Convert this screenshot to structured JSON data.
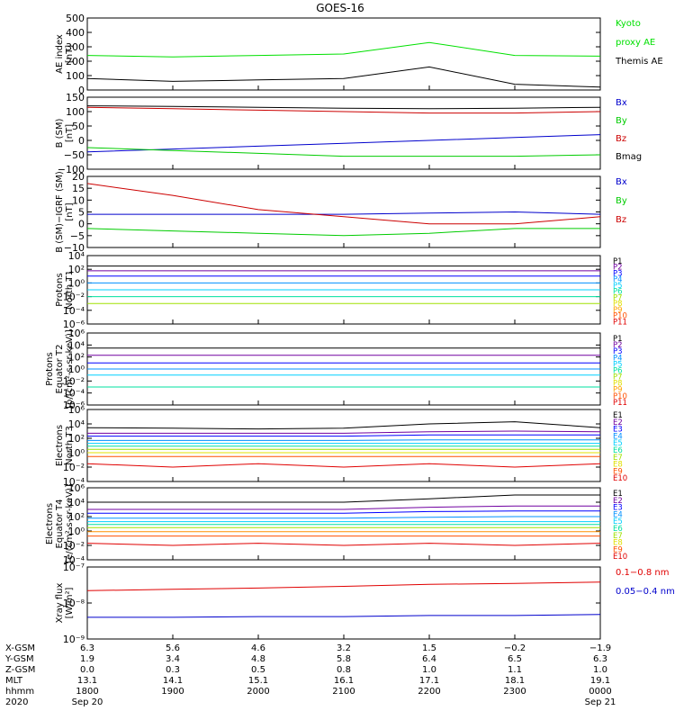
{
  "title": "GOES-16",
  "panels": [
    {
      "id": "ae",
      "ylabel_lines": [
        "AE index",
        "[nT]"
      ],
      "ticks": [
        "500",
        "400",
        "300",
        "200",
        "100",
        "0"
      ],
      "legend": [
        {
          "text": "Kyoto",
          "color": "#00e000"
        },
        {
          "text": "proxy AE",
          "color": "#00e000"
        },
        {
          "text": "Themis AE",
          "color": "#000000"
        }
      ]
    },
    {
      "id": "bsm",
      "ylabel_lines": [
        "B (SM)",
        "[nT]"
      ],
      "ticks": [
        "150",
        "100",
        "50",
        "0",
        "−50",
        "−100"
      ],
      "legend": [
        {
          "text": "Bx",
          "color": "#0000cc"
        },
        {
          "text": "By",
          "color": "#00cc00"
        },
        {
          "text": "Bz",
          "color": "#cc0000"
        },
        {
          "text": "Bmag",
          "color": "#000000"
        }
      ]
    },
    {
      "id": "bigrf",
      "ylabel_lines": [
        "B (SM)−IGRF (SM)",
        "[nT]"
      ],
      "ticks": [
        "20",
        "15",
        "10",
        "5",
        "0",
        "−5",
        "−10"
      ],
      "legend": [
        {
          "text": "Bx",
          "color": "#0000cc"
        },
        {
          "text": "By",
          "color": "#00cc00"
        },
        {
          "text": "Bz",
          "color": "#cc0000"
        }
      ]
    },
    {
      "id": "pnorth",
      "ylabel_lines": [
        "Protons",
        "North T1"
      ],
      "ticks": [
        "10⁴",
        "10²",
        "10⁰",
        "10⁻²",
        "10⁻⁴",
        "10⁻⁶"
      ],
      "legend": [
        {
          "text": "P1",
          "color": "#000000"
        },
        {
          "text": "P2",
          "color": "#7000a0"
        },
        {
          "text": "P3",
          "color": "#0000ff"
        },
        {
          "text": "P4",
          "color": "#0090ff"
        },
        {
          "text": "P5",
          "color": "#00d0ff"
        },
        {
          "text": "P6",
          "color": "#00e0a0"
        },
        {
          "text": "P7",
          "color": "#a0e000"
        },
        {
          "text": "P8",
          "color": "#e0e000"
        },
        {
          "text": "P9",
          "color": "#ffa000"
        },
        {
          "text": "P10",
          "color": "#ff5000"
        },
        {
          "text": "P11",
          "color": "#e00000"
        }
      ]
    },
    {
      "id": "peq",
      "ylabel_lines": [
        "Protons",
        "Equator T2",
        "[p/(cm²-s-sr-keV)]"
      ],
      "ticks": [
        "10⁶",
        "10⁴",
        "10²",
        "10⁰",
        "10⁻²",
        "10⁻⁴",
        "10⁻⁶"
      ],
      "legend": [
        {
          "text": "P1",
          "color": "#000000"
        },
        {
          "text": "P2",
          "color": "#7000a0"
        },
        {
          "text": "P3",
          "color": "#0000ff"
        },
        {
          "text": "P4",
          "color": "#0090ff"
        },
        {
          "text": "P5",
          "color": "#00d0ff"
        },
        {
          "text": "P6",
          "color": "#00e0a0"
        },
        {
          "text": "P7",
          "color": "#a0e000"
        },
        {
          "text": "P8",
          "color": "#e0e000"
        },
        {
          "text": "P9",
          "color": "#ffa000"
        },
        {
          "text": "P10",
          "color": "#ff5000"
        },
        {
          "text": "P11",
          "color": "#e00000"
        }
      ]
    },
    {
      "id": "enorth",
      "ylabel_lines": [
        "Electrons",
        "North T3"
      ],
      "ticks": [
        "10⁶",
        "10⁴",
        "10²",
        "10⁰",
        "10⁻²",
        "10⁻⁴"
      ],
      "legend": [
        {
          "text": "E1",
          "color": "#000000"
        },
        {
          "text": "E2",
          "color": "#7000a0"
        },
        {
          "text": "E3",
          "color": "#0000ff"
        },
        {
          "text": "E4",
          "color": "#0090ff"
        },
        {
          "text": "E5",
          "color": "#00d0ff"
        },
        {
          "text": "E6",
          "color": "#00e0a0"
        },
        {
          "text": "E7",
          "color": "#a0e000"
        },
        {
          "text": "E8",
          "color": "#e0e000"
        },
        {
          "text": "E9",
          "color": "#ff5000"
        },
        {
          "text": "E10",
          "color": "#e00000"
        }
      ]
    },
    {
      "id": "eeq",
      "ylabel_lines": [
        "Electrons",
        "Equator T4",
        "[e/(cm²-s-sr-keV)]"
      ],
      "ticks": [
        "10⁶",
        "10⁴",
        "10²",
        "10⁰",
        "10⁻²",
        "10⁻⁴"
      ],
      "legend": [
        {
          "text": "E1",
          "color": "#000000"
        },
        {
          "text": "E2",
          "color": "#7000a0"
        },
        {
          "text": "E3",
          "color": "#0000ff"
        },
        {
          "text": "E4",
          "color": "#0090ff"
        },
        {
          "text": "E5",
          "color": "#00d0ff"
        },
        {
          "text": "E6",
          "color": "#00e0a0"
        },
        {
          "text": "E7",
          "color": "#a0e000"
        },
        {
          "text": "E8",
          "color": "#e0e000"
        },
        {
          "text": "E9",
          "color": "#ff5000"
        },
        {
          "text": "E10",
          "color": "#e00000"
        }
      ]
    },
    {
      "id": "xray",
      "ylabel_lines": [
        "Xray flux",
        "[W/m²]"
      ],
      "ticks": [
        "10⁻⁷",
        "10⁻⁸",
        "10⁻⁹"
      ],
      "legend": [
        {
          "text": "0.1−0.8 nm",
          "color": "#e00000"
        },
        {
          "text": "0.05−0.4 nm",
          "color": "#0000cc"
        }
      ]
    }
  ],
  "footer": {
    "row_labels": [
      "X-GSM",
      "Y-GSM",
      "Z-GSM",
      "MLT",
      "hhmm",
      "2020"
    ],
    "columns": [
      {
        "values": [
          "6.3",
          "1.9",
          "0.0",
          "13.1",
          "1800",
          "Sep 20"
        ]
      },
      {
        "values": [
          "5.6",
          "3.4",
          "0.3",
          "14.1",
          "1900",
          ""
        ]
      },
      {
        "values": [
          "4.6",
          "4.8",
          "0.5",
          "15.1",
          "2000",
          ""
        ]
      },
      {
        "values": [
          "3.2",
          "5.8",
          "0.8",
          "16.1",
          "2100",
          ""
        ]
      },
      {
        "values": [
          "1.5",
          "6.4",
          "1.0",
          "17.1",
          "2200",
          ""
        ]
      },
      {
        "values": [
          "−0.2",
          "6.5",
          "1.1",
          "18.1",
          "2300",
          ""
        ]
      },
      {
        "values": [
          "−1.9",
          "6.3",
          "1.0",
          "19.1",
          "0000",
          "Sep 21"
        ]
      }
    ]
  },
  "chart_data": [
    {
      "type": "line",
      "title": "GOES-16",
      "ylabel": "AE index [nT]",
      "ylim": [
        0,
        500
      ],
      "x": [
        "1800",
        "1900",
        "2000",
        "2100",
        "2200",
        "2300",
        "0000"
      ],
      "series": [
        {
          "name": "Kyoto proxy AE",
          "color": "#00e000",
          "values": [
            240,
            230,
            240,
            250,
            330,
            240,
            235
          ]
        },
        {
          "name": "Themis AE",
          "color": "#000000",
          "values": [
            80,
            60,
            70,
            80,
            160,
            40,
            20
          ]
        }
      ]
    },
    {
      "type": "line",
      "ylabel": "B (SM) [nT]",
      "ylim": [
        -100,
        150
      ],
      "x": [
        "1800",
        "1900",
        "2000",
        "2100",
        "2200",
        "2300",
        "0000"
      ],
      "series": [
        {
          "name": "Bx",
          "color": "#0000cc",
          "values": [
            -40,
            -30,
            -20,
            -10,
            0,
            10,
            20
          ]
        },
        {
          "name": "By",
          "color": "#00cc00",
          "values": [
            -25,
            -35,
            -45,
            -55,
            -55,
            -55,
            -50
          ]
        },
        {
          "name": "Bz",
          "color": "#cc0000",
          "values": [
            115,
            110,
            105,
            100,
            95,
            95,
            100
          ]
        },
        {
          "name": "Bmag",
          "color": "#000000",
          "values": [
            120,
            118,
            115,
            112,
            110,
            112,
            115
          ]
        }
      ]
    },
    {
      "type": "line",
      "ylabel": "B (SM)−IGRF (SM) [nT]",
      "ylim": [
        -10,
        20
      ],
      "x": [
        "1800",
        "1900",
        "2000",
        "2100",
        "2200",
        "2300",
        "0000"
      ],
      "series": [
        {
          "name": "Bx",
          "color": "#0000cc",
          "values": [
            4,
            4,
            4,
            4,
            4.5,
            5,
            4
          ]
        },
        {
          "name": "By",
          "color": "#00cc00",
          "values": [
            -2,
            -3,
            -4,
            -5,
            -4,
            -2,
            -2
          ]
        },
        {
          "name": "Bz",
          "color": "#cc0000",
          "values": [
            17,
            12,
            6,
            3,
            0,
            0,
            3
          ]
        }
      ]
    },
    {
      "type": "line",
      "ylabel": "Protons North T1",
      "yscale": "log",
      "ylim": [
        1e-06,
        10000.0
      ],
      "x": [
        "1800",
        "1900",
        "2000",
        "2100",
        "2200",
        "2300",
        "0000"
      ],
      "series": [
        {
          "name": "P1",
          "color": "#000000",
          "values": [
            300,
            300,
            300,
            300,
            300,
            300,
            300
          ]
        },
        {
          "name": "P2",
          "color": "#7000a0",
          "values": [
            60,
            60,
            60,
            60,
            60,
            60,
            60
          ]
        },
        {
          "name": "P3",
          "color": "#0000ff",
          "values": [
            10,
            10,
            10,
            10,
            10,
            10,
            10
          ]
        },
        {
          "name": "P4",
          "color": "#0090ff",
          "values": [
            1,
            1,
            1,
            1,
            1,
            1,
            1
          ]
        },
        {
          "name": "P5",
          "color": "#00d0ff",
          "values": [
            0.1,
            0.1,
            0.1,
            0.1,
            0.1,
            0.1,
            0.1
          ]
        },
        {
          "name": "P6",
          "color": "#00e0a0",
          "values": [
            0.01,
            0.01,
            0.01,
            0.01,
            0.01,
            0.01,
            0.01
          ]
        },
        {
          "name": "P7",
          "color": "#a0e000",
          "values": [
            0.001,
            0.001,
            0.001,
            0.001,
            0.001,
            0.001,
            0.001
          ]
        }
      ]
    },
    {
      "type": "line",
      "ylabel": "Protons Equator T2 [p/(cm²-s-sr-keV)]",
      "yscale": "log",
      "ylim": [
        1e-06,
        1000000.0
      ],
      "x": [
        "1800",
        "1900",
        "2000",
        "2100",
        "2200",
        "2300",
        "0000"
      ],
      "series": [
        {
          "name": "P1",
          "color": "#000000",
          "values": [
            3000,
            3000,
            3000,
            3000,
            3000,
            3000,
            3000
          ]
        },
        {
          "name": "P2",
          "color": "#7000a0",
          "values": [
            200,
            200,
            200,
            200,
            200,
            200,
            200
          ]
        },
        {
          "name": "P3",
          "color": "#0000ff",
          "values": [
            10,
            10,
            10,
            10,
            10,
            10,
            10
          ]
        },
        {
          "name": "P4",
          "color": "#0090ff",
          "values": [
            1,
            1,
            1,
            1,
            1,
            1,
            1
          ]
        },
        {
          "name": "P5",
          "color": "#00d0ff",
          "values": [
            0.1,
            0.1,
            0.1,
            0.1,
            0.1,
            0.1,
            0.1
          ]
        },
        {
          "name": "P6",
          "color": "#00e0a0",
          "values": [
            0.001,
            0.001,
            0.001,
            0.001,
            0.001,
            0.001,
            0.001
          ]
        }
      ]
    },
    {
      "type": "line",
      "ylabel": "Electrons North T3",
      "yscale": "log",
      "ylim": [
        0.0001,
        1000000.0
      ],
      "x": [
        "1800",
        "1900",
        "2000",
        "2100",
        "2200",
        "2300",
        "0000"
      ],
      "series": [
        {
          "name": "E1",
          "color": "#000000",
          "values": [
            3000,
            2500,
            2000,
            2500,
            10000,
            20000,
            3000
          ]
        },
        {
          "name": "E2",
          "color": "#7000a0",
          "values": [
            500,
            500,
            500,
            500,
            800,
            1000,
            800
          ]
        },
        {
          "name": "E3",
          "color": "#0000ff",
          "values": [
            200,
            200,
            200,
            200,
            300,
            300,
            300
          ]
        },
        {
          "name": "E4",
          "color": "#0090ff",
          "values": [
            50,
            50,
            50,
            50,
            60,
            60,
            60
          ]
        },
        {
          "name": "E5",
          "color": "#00d0ff",
          "values": [
            20,
            20,
            20,
            20,
            20,
            20,
            20
          ]
        },
        {
          "name": "E6",
          "color": "#00e0a0",
          "values": [
            8,
            8,
            8,
            8,
            8,
            8,
            8
          ]
        },
        {
          "name": "E7",
          "color": "#a0e000",
          "values": [
            3,
            3,
            3,
            3,
            3,
            3,
            3
          ]
        },
        {
          "name": "E8",
          "color": "#e0e000",
          "values": [
            1,
            1,
            1,
            1,
            1,
            1,
            1
          ]
        },
        {
          "name": "E9",
          "color": "#ff5000",
          "values": [
            0.3,
            0.3,
            0.3,
            0.3,
            0.3,
            0.3,
            0.3
          ]
        },
        {
          "name": "E10",
          "color": "#e00000",
          "values": [
            0.03,
            0.01,
            0.03,
            0.01,
            0.03,
            0.01,
            0.03
          ]
        }
      ]
    },
    {
      "type": "line",
      "ylabel": "Electrons Equator T4 [e/(cm²-s-sr-keV)]",
      "yscale": "log",
      "ylim": [
        0.0001,
        1000000.0
      ],
      "x": [
        "1800",
        "1900",
        "2000",
        "2100",
        "2200",
        "2300",
        "0000"
      ],
      "series": [
        {
          "name": "E1",
          "color": "#000000",
          "values": [
            10000,
            10000,
            10000,
            10000,
            30000,
            100000,
            100000
          ]
        },
        {
          "name": "E2",
          "color": "#7000a0",
          "values": [
            1000,
            1000,
            1000,
            1000,
            2000,
            3000,
            3000
          ]
        },
        {
          "name": "E3",
          "color": "#0000ff",
          "values": [
            300,
            300,
            300,
            300,
            500,
            600,
            600
          ]
        },
        {
          "name": "E4",
          "color": "#0090ff",
          "values": [
            60,
            60,
            60,
            60,
            80,
            100,
            100
          ]
        },
        {
          "name": "E5",
          "color": "#00d0ff",
          "values": [
            20,
            20,
            20,
            20,
            20,
            20,
            20
          ]
        },
        {
          "name": "E6",
          "color": "#00e0a0",
          "values": [
            8,
            8,
            8,
            8,
            8,
            8,
            8
          ]
        },
        {
          "name": "E7",
          "color": "#a0e000",
          "values": [
            3,
            3,
            3,
            3,
            3,
            3,
            3
          ]
        },
        {
          "name": "E8",
          "color": "#ff9000",
          "values": [
            0.8,
            0.8,
            0.8,
            0.8,
            0.8,
            0.8,
            0.8
          ]
        },
        {
          "name": "E9",
          "color": "#ff5000",
          "values": [
            0.2,
            0.2,
            0.2,
            0.2,
            0.2,
            0.2,
            0.2
          ]
        },
        {
          "name": "E10",
          "color": "#e00000",
          "values": [
            0.02,
            0.01,
            0.02,
            0.01,
            0.02,
            0.01,
            0.02
          ]
        }
      ]
    },
    {
      "type": "line",
      "ylabel": "Xray flux [W/m²]",
      "yscale": "log",
      "ylim": [
        1e-09,
        1e-07
      ],
      "x": [
        "1800",
        "1900",
        "2000",
        "2100",
        "2200",
        "2300",
        "0000"
      ],
      "series": [
        {
          "name": "0.1−0.8 nm",
          "color": "#e00000",
          "values": [
            2.2e-08,
            2.4e-08,
            2.6e-08,
            2.9e-08,
            3.3e-08,
            3.5e-08,
            3.8e-08
          ]
        },
        {
          "name": "0.05−0.4 nm",
          "color": "#0000cc",
          "values": [
            4e-09,
            4e-09,
            4.2e-09,
            4.2e-09,
            4.5e-09,
            4.5e-09,
            4.8e-09
          ]
        }
      ]
    }
  ]
}
